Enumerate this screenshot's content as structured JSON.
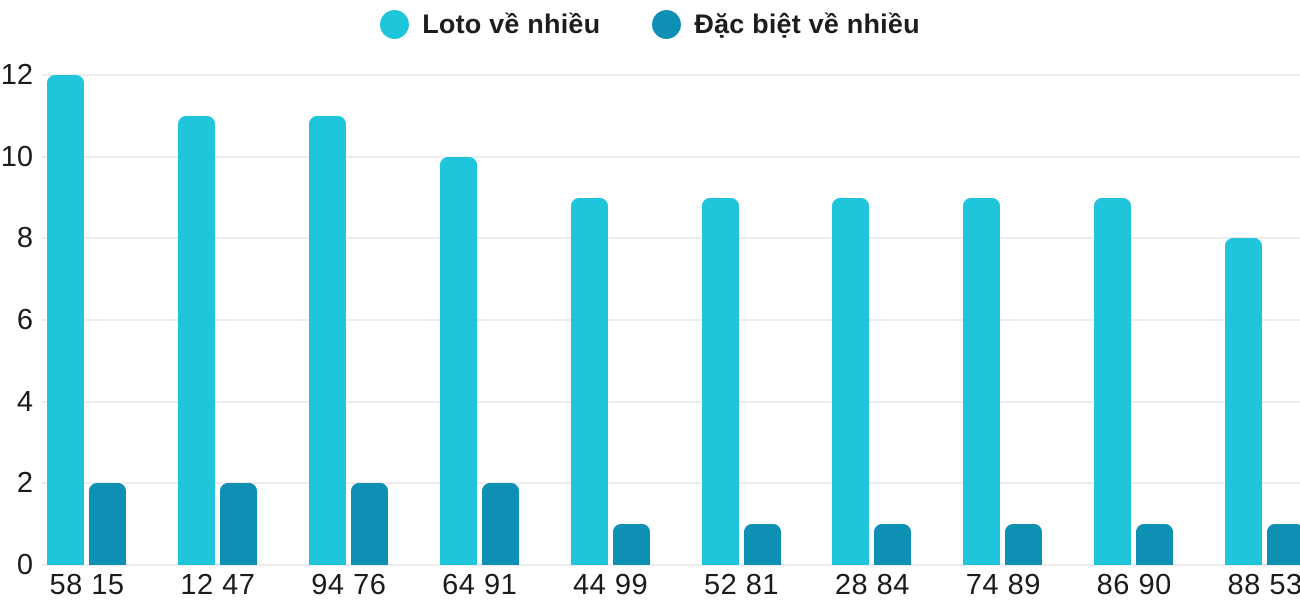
{
  "legend": {
    "items": [
      {
        "label": "Loto về nhiều",
        "color": "#1EC5DB"
      },
      {
        "label": "Đặc biệt về nhiều",
        "color": "#0E90B5"
      }
    ]
  },
  "chart_data": {
    "type": "bar",
    "title": "",
    "xlabel": "",
    "ylabel": "",
    "categories": [
      "58 15",
      "12 47",
      "94 76",
      "64 91",
      "44 99",
      "52 81",
      "28 84",
      "74 89",
      "86 90",
      "88 53"
    ],
    "series": [
      {
        "name": "Loto về nhiều",
        "color": "#1EC5DB",
        "values": [
          12,
          11,
          11,
          10,
          9,
          9,
          9,
          9,
          9,
          8
        ]
      },
      {
        "name": "Đặc biệt về nhiều",
        "color": "#0E90B5",
        "values": [
          2,
          2,
          2,
          2,
          1,
          1,
          1,
          1,
          1,
          1
        ]
      }
    ],
    "ylim": [
      0,
      12
    ],
    "yticks": [
      0,
      2,
      4,
      6,
      8,
      10,
      12
    ],
    "grid": true,
    "legend_position": "top"
  },
  "colors": {
    "grid": "#ededed",
    "text": "#1b1b1b",
    "background": "#ffffff"
  }
}
